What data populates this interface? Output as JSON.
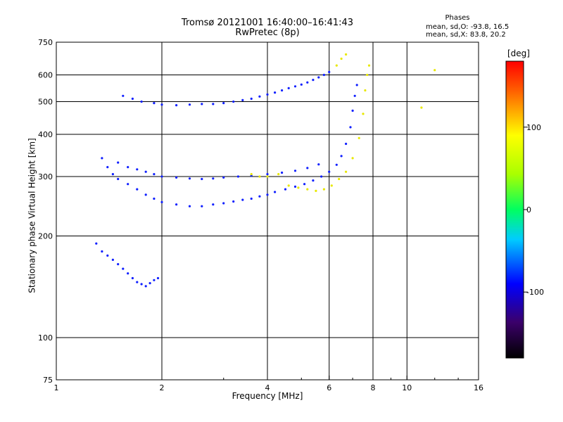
{
  "chart_data": {
    "type": "scatter",
    "title": "Tromsø 20121001 16:40:00–16:41:43",
    "subtitle": "RwPretec (8p)",
    "xlabel": "Frequency [MHz]",
    "ylabel": "Stationary phase Virtual Height [km]",
    "x_scale": "log",
    "y_scale": "log",
    "xlim": [
      1,
      16
    ],
    "ylim": [
      75,
      750
    ],
    "x_ticks": [
      1,
      2,
      4,
      6,
      8,
      10,
      16
    ],
    "x_tick_labels": [
      "1",
      "2",
      "4",
      "6",
      "8",
      "10",
      "16"
    ],
    "x_gridlines": [
      2,
      4,
      6,
      8,
      10
    ],
    "y_ticks": [
      75,
      100,
      200,
      300,
      400,
      500,
      600,
      750
    ],
    "y_tick_labels": [
      "75",
      "100",
      "200",
      "300",
      "400",
      "500",
      "600",
      "750"
    ],
    "y_gridlines": [
      100,
      200,
      300,
      400,
      500,
      600
    ],
    "grid": true,
    "stats_title": "Phases",
    "stats": [
      "mean, sd,O: -93.8, 16.5",
      "mean, sd,X: 83.8, 20.2"
    ],
    "colorbar": {
      "label": "[deg]",
      "range": [
        -180,
        180
      ],
      "ticks": [
        100,
        0,
        -100
      ],
      "tick_labels": [
        "100",
        "0",
        "-100"
      ]
    },
    "series": [
      {
        "phase_deg": -100,
        "points": [
          [
            1.55,
            520
          ],
          [
            1.65,
            510
          ],
          [
            1.75,
            500
          ],
          [
            1.9,
            495
          ],
          [
            2.0,
            490
          ],
          [
            2.2,
            488
          ],
          [
            2.4,
            490
          ],
          [
            2.6,
            492
          ],
          [
            2.8,
            492
          ],
          [
            3.0,
            495
          ],
          [
            3.2,
            500
          ],
          [
            3.4,
            505
          ],
          [
            3.6,
            510
          ],
          [
            3.8,
            518
          ],
          [
            4.0,
            525
          ],
          [
            4.2,
            532
          ],
          [
            4.4,
            540
          ],
          [
            4.6,
            548
          ],
          [
            4.8,
            555
          ],
          [
            5.0,
            562
          ],
          [
            5.2,
            570
          ],
          [
            5.4,
            580
          ],
          [
            5.6,
            590
          ],
          [
            5.8,
            600
          ],
          [
            6.0,
            612
          ]
        ]
      },
      {
        "phase_deg": -100,
        "points": [
          [
            1.35,
            340
          ],
          [
            1.4,
            320
          ],
          [
            1.45,
            305
          ],
          [
            1.5,
            295
          ],
          [
            1.6,
            285
          ],
          [
            1.7,
            275
          ],
          [
            1.8,
            265
          ],
          [
            1.9,
            258
          ],
          [
            2.0,
            252
          ],
          [
            2.2,
            248
          ],
          [
            2.4,
            245
          ],
          [
            2.6,
            245
          ],
          [
            2.8,
            248
          ],
          [
            3.0,
            250
          ],
          [
            3.2,
            253
          ],
          [
            3.4,
            256
          ],
          [
            3.6,
            258
          ],
          [
            3.8,
            262
          ],
          [
            4.0,
            265
          ],
          [
            4.2,
            270
          ],
          [
            4.5,
            275
          ],
          [
            4.8,
            280
          ],
          [
            5.1,
            285
          ],
          [
            5.4,
            292
          ],
          [
            5.7,
            300
          ],
          [
            6.0,
            310
          ],
          [
            6.3,
            325
          ],
          [
            6.5,
            345
          ],
          [
            6.7,
            375
          ],
          [
            6.9,
            420
          ],
          [
            7.0,
            470
          ],
          [
            7.1,
            520
          ],
          [
            7.2,
            560
          ]
        ]
      },
      {
        "phase_deg": -100,
        "points": [
          [
            1.5,
            330
          ],
          [
            1.6,
            320
          ],
          [
            1.7,
            315
          ],
          [
            1.8,
            310
          ],
          [
            1.9,
            305
          ],
          [
            2.0,
            300
          ],
          [
            2.2,
            298
          ],
          [
            2.4,
            296
          ],
          [
            2.6,
            295
          ],
          [
            2.8,
            296
          ],
          [
            3.0,
            298
          ],
          [
            3.3,
            300
          ],
          [
            3.6,
            302
          ],
          [
            4.0,
            305
          ],
          [
            4.4,
            308
          ],
          [
            4.8,
            312
          ],
          [
            5.2,
            318
          ],
          [
            5.6,
            326
          ]
        ]
      },
      {
        "phase_deg": -100,
        "points": [
          [
            1.3,
            190
          ],
          [
            1.35,
            180
          ],
          [
            1.4,
            175
          ],
          [
            1.45,
            170
          ],
          [
            1.5,
            165
          ],
          [
            1.55,
            160
          ],
          [
            1.6,
            155
          ],
          [
            1.65,
            150
          ],
          [
            1.7,
            146
          ],
          [
            1.75,
            144
          ],
          [
            1.8,
            142
          ],
          [
            1.85,
            145
          ],
          [
            1.9,
            148
          ],
          [
            1.95,
            150
          ]
        ]
      },
      {
        "phase_deg": 100,
        "points": [
          [
            3.6,
            305
          ],
          [
            3.8,
            300
          ],
          [
            4.0,
            300
          ],
          [
            4.3,
            305
          ],
          [
            4.6,
            282
          ],
          [
            4.9,
            278
          ],
          [
            5.2,
            275
          ],
          [
            5.5,
            272
          ],
          [
            5.8,
            275
          ],
          [
            6.1,
            282
          ],
          [
            6.4,
            295
          ],
          [
            6.7,
            310
          ],
          [
            7.0,
            340
          ],
          [
            7.3,
            390
          ],
          [
            7.5,
            460
          ],
          [
            7.6,
            540
          ],
          [
            7.7,
            600
          ],
          [
            7.8,
            640
          ]
        ]
      },
      {
        "phase_deg": 100,
        "points": [
          [
            6.3,
            640
          ],
          [
            6.5,
            670
          ],
          [
            6.7,
            690
          ],
          [
            11.0,
            480
          ],
          [
            12.0,
            620
          ]
        ]
      }
    ]
  }
}
